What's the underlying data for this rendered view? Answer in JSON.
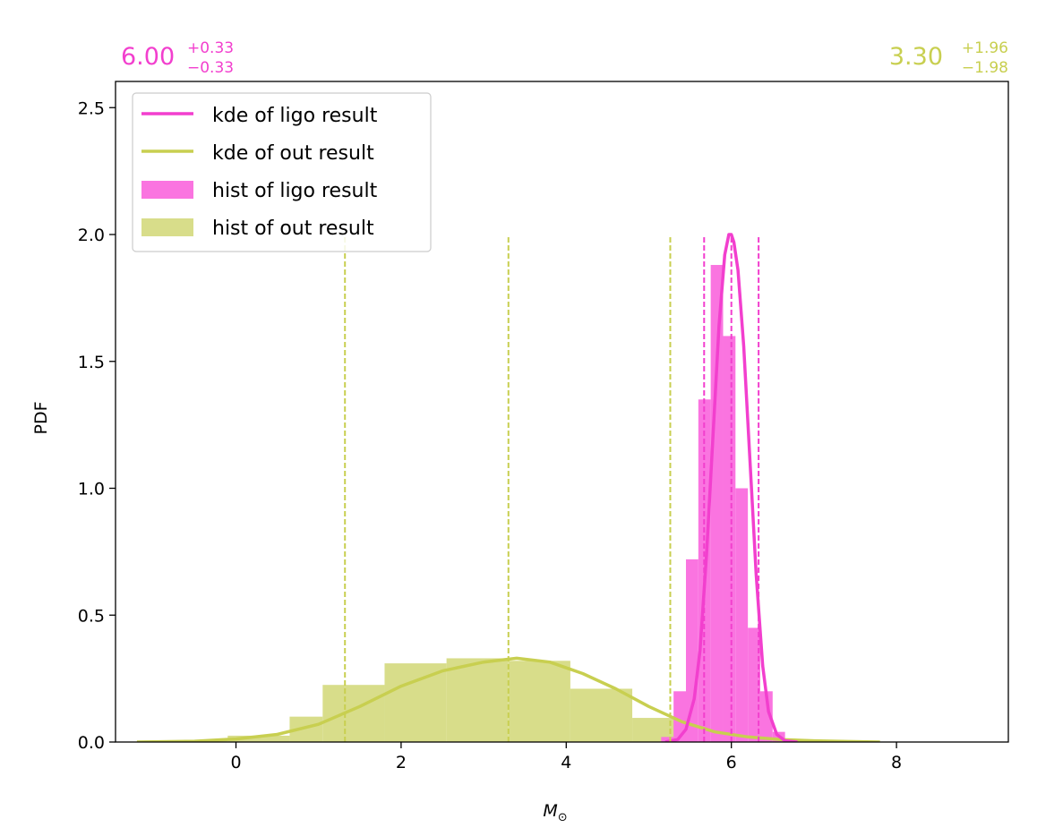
{
  "chart_data": {
    "type": "histogram+kde",
    "xlabel": "M",
    "xlabel_sub": "⊙",
    "ylabel": "PDF",
    "xlim": [
      -1.4,
      9.3
    ],
    "ylim": [
      0,
      2.6
    ],
    "xticks": [
      0,
      2,
      4,
      6,
      8
    ],
    "yticks": [
      0.0,
      0.5,
      1.0,
      1.5,
      2.0,
      2.5
    ],
    "xtick_labels": [
      "0",
      "2",
      "4",
      "6",
      "8"
    ],
    "ytick_labels": [
      "0.0",
      "0.5",
      "1.0",
      "1.5",
      "2.0",
      "2.5"
    ],
    "legend_position": "top-left",
    "annotations": {
      "ligo": {
        "median": "6.00",
        "plus": "+0.33",
        "minus": "−0.33",
        "color": "#f23fce"
      },
      "out": {
        "median": "3.30",
        "plus": "+1.96",
        "minus": "−1.98",
        "color": "#c8cf50"
      }
    },
    "series": [
      {
        "name": "ligo",
        "kde_label": "kde of ligo result",
        "hist_label": "hist of ligo result",
        "line_color": "#f23fce",
        "hist_color": "#fa74e0",
        "quantiles": [
          5.67,
          6.0,
          6.33
        ],
        "hist_edges": [
          5.15,
          5.3,
          5.45,
          5.6,
          5.75,
          5.9,
          6.05,
          6.2,
          6.35,
          6.5,
          6.65
        ],
        "hist_values": [
          0.02,
          0.2,
          0.72,
          1.35,
          1.88,
          1.6,
          1.0,
          0.45,
          0.2,
          0.04
        ],
        "kde_x": [
          5.2,
          5.35,
          5.45,
          5.55,
          5.62,
          5.7,
          5.78,
          5.85,
          5.92,
          5.97,
          6.0,
          6.03,
          6.08,
          6.15,
          6.22,
          6.3,
          6.38,
          6.45,
          6.55,
          6.65,
          6.8
        ],
        "kde_y": [
          0.0,
          0.01,
          0.05,
          0.17,
          0.36,
          0.74,
          1.22,
          1.64,
          1.92,
          2.0,
          2.0,
          1.97,
          1.86,
          1.56,
          1.14,
          0.66,
          0.3,
          0.12,
          0.03,
          0.005,
          0.0
        ]
      },
      {
        "name": "out",
        "kde_label": "kde of out result",
        "hist_label": "hist of out result",
        "line_color": "#c8cf50",
        "hist_color": "#d8dd8a",
        "quantiles": [
          1.32,
          3.3,
          5.26
        ],
        "hist_edges": [
          -0.85,
          -0.1,
          0.65,
          1.05,
          1.8,
          2.55,
          3.3,
          4.05,
          4.8,
          5.55
        ],
        "hist_values": [
          0.005,
          0.025,
          0.1,
          0.225,
          0.31,
          0.33,
          0.32,
          0.21,
          0.095
        ],
        "kde_x": [
          -1.2,
          -0.5,
          0.0,
          0.5,
          1.0,
          1.5,
          2.0,
          2.5,
          3.0,
          3.4,
          3.8,
          4.2,
          4.6,
          5.0,
          5.4,
          5.8,
          6.2,
          6.6,
          7.0,
          7.4,
          7.8
        ],
        "kde_y": [
          0.0,
          0.003,
          0.012,
          0.03,
          0.07,
          0.14,
          0.22,
          0.28,
          0.315,
          0.33,
          0.315,
          0.27,
          0.21,
          0.14,
          0.08,
          0.04,
          0.02,
          0.01,
          0.005,
          0.002,
          0.0
        ]
      }
    ]
  }
}
